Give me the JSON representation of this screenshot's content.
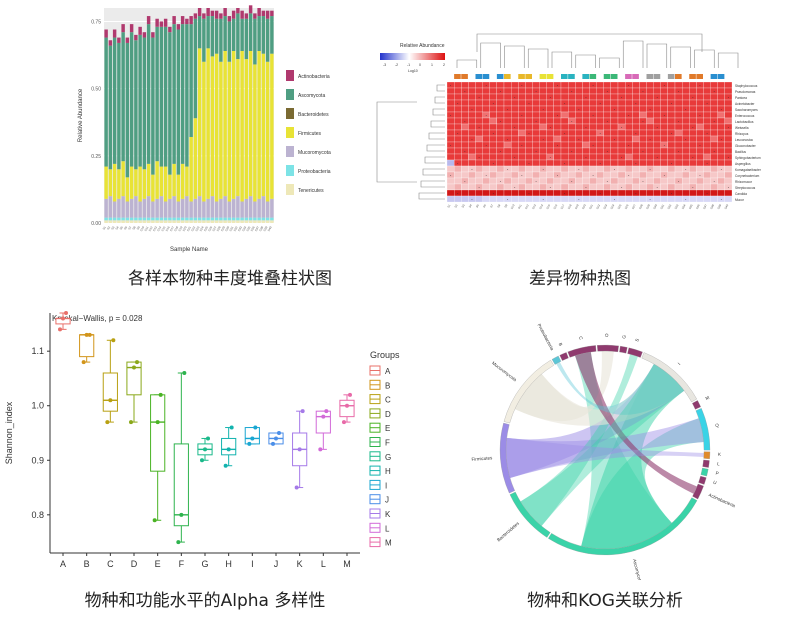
{
  "captions": {
    "stacked": "各样本物种丰度堆叠柱状图",
    "heatmap": "差异物种热图",
    "alpha": "物种和功能水平的Alpha 多样性",
    "chord": "物种和KOG关联分析"
  },
  "chart_data": [
    {
      "type": "bar",
      "stacked": true,
      "xlabel": "Sample Name",
      "ylabel": "Relative Abundance",
      "yticks": [
        "0.00",
        "0.25",
        "0.50",
        "0.75"
      ],
      "ylim": [
        0,
        0.8
      ],
      "categories_count": 40,
      "series": [
        {
          "name": "Tenericutes",
          "color": "#eee8b8",
          "values": [
            0.01,
            0.01,
            0.01,
            0.01,
            0.01,
            0.01,
            0.01,
            0.01,
            0.01,
            0.01,
            0.01,
            0.01,
            0.01,
            0.01,
            0.01,
            0.01,
            0.01,
            0.01,
            0.01,
            0.01,
            0.01,
            0.01,
            0.01,
            0.01,
            0.01,
            0.01,
            0.01,
            0.01,
            0.01,
            0.01,
            0.01,
            0.01,
            0.01,
            0.01,
            0.01,
            0.01,
            0.01,
            0.01,
            0.01,
            0.01
          ]
        },
        {
          "name": "Proteobacteria",
          "color": "#7de3e6",
          "values": [
            0.01,
            0.01,
            0.01,
            0.01,
            0.01,
            0.01,
            0.01,
            0.01,
            0.01,
            0.01,
            0.01,
            0.01,
            0.01,
            0.01,
            0.01,
            0.01,
            0.01,
            0.01,
            0.01,
            0.01,
            0.01,
            0.01,
            0.01,
            0.01,
            0.01,
            0.01,
            0.01,
            0.01,
            0.01,
            0.01,
            0.01,
            0.01,
            0.01,
            0.01,
            0.01,
            0.01,
            0.01,
            0.01,
            0.01,
            0.01
          ]
        },
        {
          "name": "Mucoromycota",
          "color": "#bcb3d1",
          "values": [
            0.07,
            0.08,
            0.06,
            0.07,
            0.08,
            0.06,
            0.07,
            0.08,
            0.06,
            0.07,
            0.08,
            0.06,
            0.07,
            0.08,
            0.06,
            0.07,
            0.08,
            0.06,
            0.07,
            0.08,
            0.06,
            0.07,
            0.08,
            0.06,
            0.07,
            0.08,
            0.06,
            0.07,
            0.08,
            0.06,
            0.07,
            0.08,
            0.06,
            0.07,
            0.08,
            0.06,
            0.07,
            0.08,
            0.06,
            0.07
          ]
        },
        {
          "name": "Firmicutes",
          "color": "#e8e336",
          "values": [
            0.12,
            0.1,
            0.14,
            0.11,
            0.13,
            0.09,
            0.12,
            0.1,
            0.13,
            0.11,
            0.12,
            0.1,
            0.14,
            0.11,
            0.13,
            0.09,
            0.12,
            0.1,
            0.13,
            0.11,
            0.24,
            0.3,
            0.55,
            0.52,
            0.56,
            0.52,
            0.55,
            0.51,
            0.54,
            0.52,
            0.55,
            0.51,
            0.56,
            0.52,
            0.54,
            0.51,
            0.55,
            0.53,
            0.52,
            0.54
          ]
        },
        {
          "name": "Bacteroidetes",
          "color": "#7a6a32",
          "values": [
            0,
            0,
            0,
            0,
            0,
            0,
            0,
            0,
            0,
            0,
            0,
            0,
            0,
            0,
            0,
            0,
            0,
            0,
            0,
            0,
            0,
            0,
            0,
            0,
            0,
            0,
            0,
            0,
            0,
            0,
            0,
            0,
            0,
            0,
            0,
            0,
            0,
            0,
            0,
            0
          ]
        },
        {
          "name": "Ascomycota",
          "color": "#4f9e82",
          "values": [
            0.48,
            0.46,
            0.47,
            0.47,
            0.48,
            0.5,
            0.5,
            0.48,
            0.49,
            0.49,
            0.52,
            0.51,
            0.5,
            0.52,
            0.52,
            0.53,
            0.52,
            0.54,
            0.52,
            0.53,
            0.42,
            0.37,
            0.12,
            0.16,
            0.12,
            0.15,
            0.13,
            0.16,
            0.13,
            0.15,
            0.12,
            0.17,
            0.12,
            0.15,
            0.14,
            0.17,
            0.13,
            0.14,
            0.16,
            0.14
          ]
        },
        {
          "name": "Actinobacteria",
          "color": "#b0396e",
          "values": [
            0.03,
            0.02,
            0.03,
            0.02,
            0.03,
            0.02,
            0.03,
            0.02,
            0.03,
            0.02,
            0.03,
            0.02,
            0.03,
            0.02,
            0.03,
            0.02,
            0.03,
            0.02,
            0.03,
            0.02,
            0.03,
            0.02,
            0.03,
            0.02,
            0.03,
            0.02,
            0.03,
            0.02,
            0.03,
            0.02,
            0.03,
            0.02,
            0.03,
            0.02,
            0.03,
            0.02,
            0.03,
            0.02,
            0.03,
            0.02
          ]
        }
      ],
      "legend_order": [
        "Actinobacteria",
        "Ascomycota",
        "Bacteroidetes",
        "Firmicutes",
        "Mucoromycota",
        "Proteobacteria",
        "Tenericutes"
      ],
      "legend_placement": "right"
    },
    {
      "type": "heatmap",
      "legend_title": "Relative Abundance",
      "legend_sub": "Log10",
      "legend_ticks": [
        "-3",
        "-2",
        "-1",
        "0",
        "1",
        "2"
      ],
      "rows": [
        "Staphylococcus",
        "Pseudomonas",
        "Pantoea",
        "Acinetobacter",
        "Saccharomyces",
        "Enterococcus",
        "Lactobacillus",
        "Weissella",
        "Rhizopus",
        "Leuconostoc",
        "Gluconobacter",
        "Bacillus",
        "Sphingobacterium",
        "Aspergillus",
        "Komagataeibacter",
        "Corynebacterium",
        "Rhizomucor",
        "Streptococcus",
        "Candida",
        "Mucor"
      ],
      "columns_count": 40,
      "group_colors": [
        "#e07a2a",
        "#2a8fd0",
        "#e8b82a",
        "#e8e336",
        "#2ab3c0",
        "#3cb878",
        "#d86ab8",
        "#a0a0a0"
      ]
    },
    {
      "type": "box",
      "title": "Kruskal−Wallis, p = 0.028",
      "xlabel": "",
      "ylabel": "Shannon_index",
      "categories": [
        "A",
        "B",
        "C",
        "D",
        "E",
        "F",
        "G",
        "H",
        "I",
        "J",
        "K",
        "L",
        "M"
      ],
      "yticks": [
        "0.8",
        "0.9",
        "1.0",
        "1.1"
      ],
      "ylim": [
        0.73,
        1.17
      ],
      "legend_title": "Groups",
      "legend_placement": "right",
      "boxes": [
        {
          "name": "A",
          "color": "#e8706a",
          "min": 1.14,
          "q1": 1.15,
          "median": 1.16,
          "q3": 1.16,
          "max": 1.17,
          "points": [
            1.14,
            1.16,
            1.17
          ]
        },
        {
          "name": "B",
          "color": "#d2951a",
          "min": 1.08,
          "q1": 1.09,
          "median": 1.13,
          "q3": 1.13,
          "max": 1.13,
          "points": [
            1.08,
            1.13,
            1.13
          ]
        },
        {
          "name": "C",
          "color": "#b8a012",
          "min": 0.97,
          "q1": 0.99,
          "median": 1.01,
          "q3": 1.06,
          "max": 1.12,
          "points": [
            0.97,
            1.01,
            1.12
          ]
        },
        {
          "name": "D",
          "color": "#8aa81a",
          "min": 0.97,
          "q1": 1.02,
          "median": 1.07,
          "q3": 1.08,
          "max": 1.08,
          "points": [
            0.97,
            1.07,
            1.08
          ]
        },
        {
          "name": "E",
          "color": "#4ab324",
          "min": 0.79,
          "q1": 0.88,
          "median": 0.97,
          "q3": 1.02,
          "max": 1.02,
          "points": [
            0.79,
            0.97,
            1.02
          ]
        },
        {
          "name": "F",
          "color": "#2eb34e",
          "min": 0.75,
          "q1": 0.78,
          "median": 0.8,
          "q3": 0.93,
          "max": 1.06,
          "points": [
            0.75,
            0.8,
            1.06
          ]
        },
        {
          "name": "G",
          "color": "#1ab98a",
          "min": 0.9,
          "q1": 0.91,
          "median": 0.92,
          "q3": 0.93,
          "max": 0.94,
          "points": [
            0.9,
            0.92,
            0.94
          ]
        },
        {
          "name": "H",
          "color": "#12b3ae",
          "min": 0.89,
          "q1": 0.91,
          "median": 0.92,
          "q3": 0.94,
          "max": 0.96,
          "points": [
            0.89,
            0.92,
            0.96
          ]
        },
        {
          "name": "I",
          "color": "#1aa7d2",
          "min": 0.93,
          "q1": 0.93,
          "median": 0.94,
          "q3": 0.96,
          "max": 0.96,
          "points": [
            0.93,
            0.94,
            0.96
          ]
        },
        {
          "name": "J",
          "color": "#4a8ee8",
          "min": 0.93,
          "q1": 0.93,
          "median": 0.94,
          "q3": 0.95,
          "max": 0.95,
          "points": [
            0.93,
            0.94,
            0.95
          ]
        },
        {
          "name": "K",
          "color": "#a57ae8",
          "min": 0.85,
          "q1": 0.89,
          "median": 0.92,
          "q3": 0.95,
          "max": 0.99,
          "points": [
            0.85,
            0.92,
            0.99
          ]
        },
        {
          "name": "L",
          "color": "#d26ad8",
          "min": 0.92,
          "q1": 0.95,
          "median": 0.98,
          "q3": 0.99,
          "max": 0.99,
          "points": [
            0.92,
            0.98,
            0.99
          ]
        },
        {
          "name": "M",
          "color": "#e86aa8",
          "min": 0.97,
          "q1": 0.98,
          "median": 1.0,
          "q3": 1.01,
          "max": 1.02,
          "points": [
            0.97,
            1.0,
            1.02
          ]
        }
      ]
    },
    {
      "type": "chord",
      "sectors": [
        {
          "name": "Actinobacteria",
          "color": "#8f3a6e",
          "value": 2
        },
        {
          "name": "Ascomycota",
          "color": "#3ad3a8",
          "value": 24
        },
        {
          "name": "Bacteroidetes",
          "color": "#3ad3a8",
          "value": 8
        },
        {
          "name": "Firmicutes",
          "color": "#9b8ce6",
          "value": 10
        },
        {
          "name": "Mucoromycota",
          "color": "#f2eee2",
          "value": 11
        },
        {
          "name": "Proteobacteria",
          "color": "#5bc6d6",
          "value": 1
        },
        {
          "name": "B",
          "color": "#8f3a6e",
          "value": 1
        },
        {
          "name": "C",
          "color": "#8f3a6e",
          "value": 4
        },
        {
          "name": "O",
          "color": "#8f3a6e",
          "value": 3
        },
        {
          "name": "G",
          "color": "#8f3a6e",
          "value": 1
        },
        {
          "name": "S",
          "color": "#8f3a6e",
          "value": 2
        },
        {
          "name": "I",
          "color": "#e8e6e0",
          "value": 10
        },
        {
          "name": "M",
          "color": "#8f3a6e",
          "value": 1
        },
        {
          "name": "Q",
          "color": "#3ad3e6",
          "value": 6
        },
        {
          "name": "K",
          "color": "#e08a2a",
          "value": 1
        },
        {
          "name": "L",
          "color": "#8f3a6e",
          "value": 1
        },
        {
          "name": "P",
          "color": "#3ad3a8",
          "value": 1
        },
        {
          "name": "U",
          "color": "#8f3a6e",
          "value": 1
        }
      ]
    }
  ]
}
